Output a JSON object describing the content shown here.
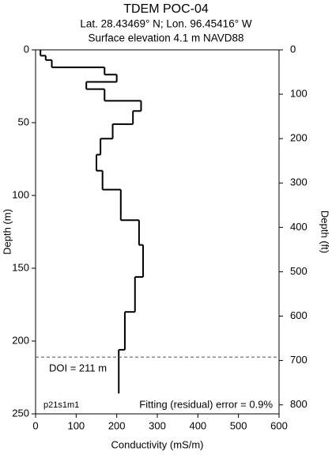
{
  "chart_data": {
    "type": "step",
    "title": "TDEM POC-04",
    "subtitle": [
      "Lat. 28.43469° N; Lon. 96.45416° W",
      "Surface elevation 4.1 m NAVD88"
    ],
    "xlabel": "Conductivity (mS/m)",
    "ylabel": "Depth (m)",
    "y2label": "Depth (ft)",
    "xlim": [
      0,
      600
    ],
    "xticks": [
      0,
      100,
      200,
      300,
      400,
      500,
      600
    ],
    "ylim": [
      0,
      250
    ],
    "yticks": [
      0,
      50,
      100,
      150,
      200,
      250
    ],
    "y_inverted": true,
    "y2lim": [
      0,
      820.2
    ],
    "y2ticks": [
      0,
      100,
      200,
      300,
      400,
      500,
      600,
      700,
      800
    ],
    "depths": [
      0,
      4,
      7,
      12,
      17,
      22,
      27,
      35,
      42,
      51,
      61,
      72,
      83,
      96,
      117,
      134,
      156,
      180,
      206,
      236
    ],
    "series": [
      {
        "color": "#000000",
        "values": [
          12,
          25,
          40,
          170,
          200,
          125,
          170,
          260,
          240,
          190,
          160,
          150,
          165,
          210,
          255,
          265,
          245,
          220,
          205
        ]
      }
    ],
    "doi": 211,
    "doi_label": "DOI = 211 m",
    "annotations": [
      "p21s1m1",
      "Fitting (residual) error = 0.9%"
    ]
  }
}
